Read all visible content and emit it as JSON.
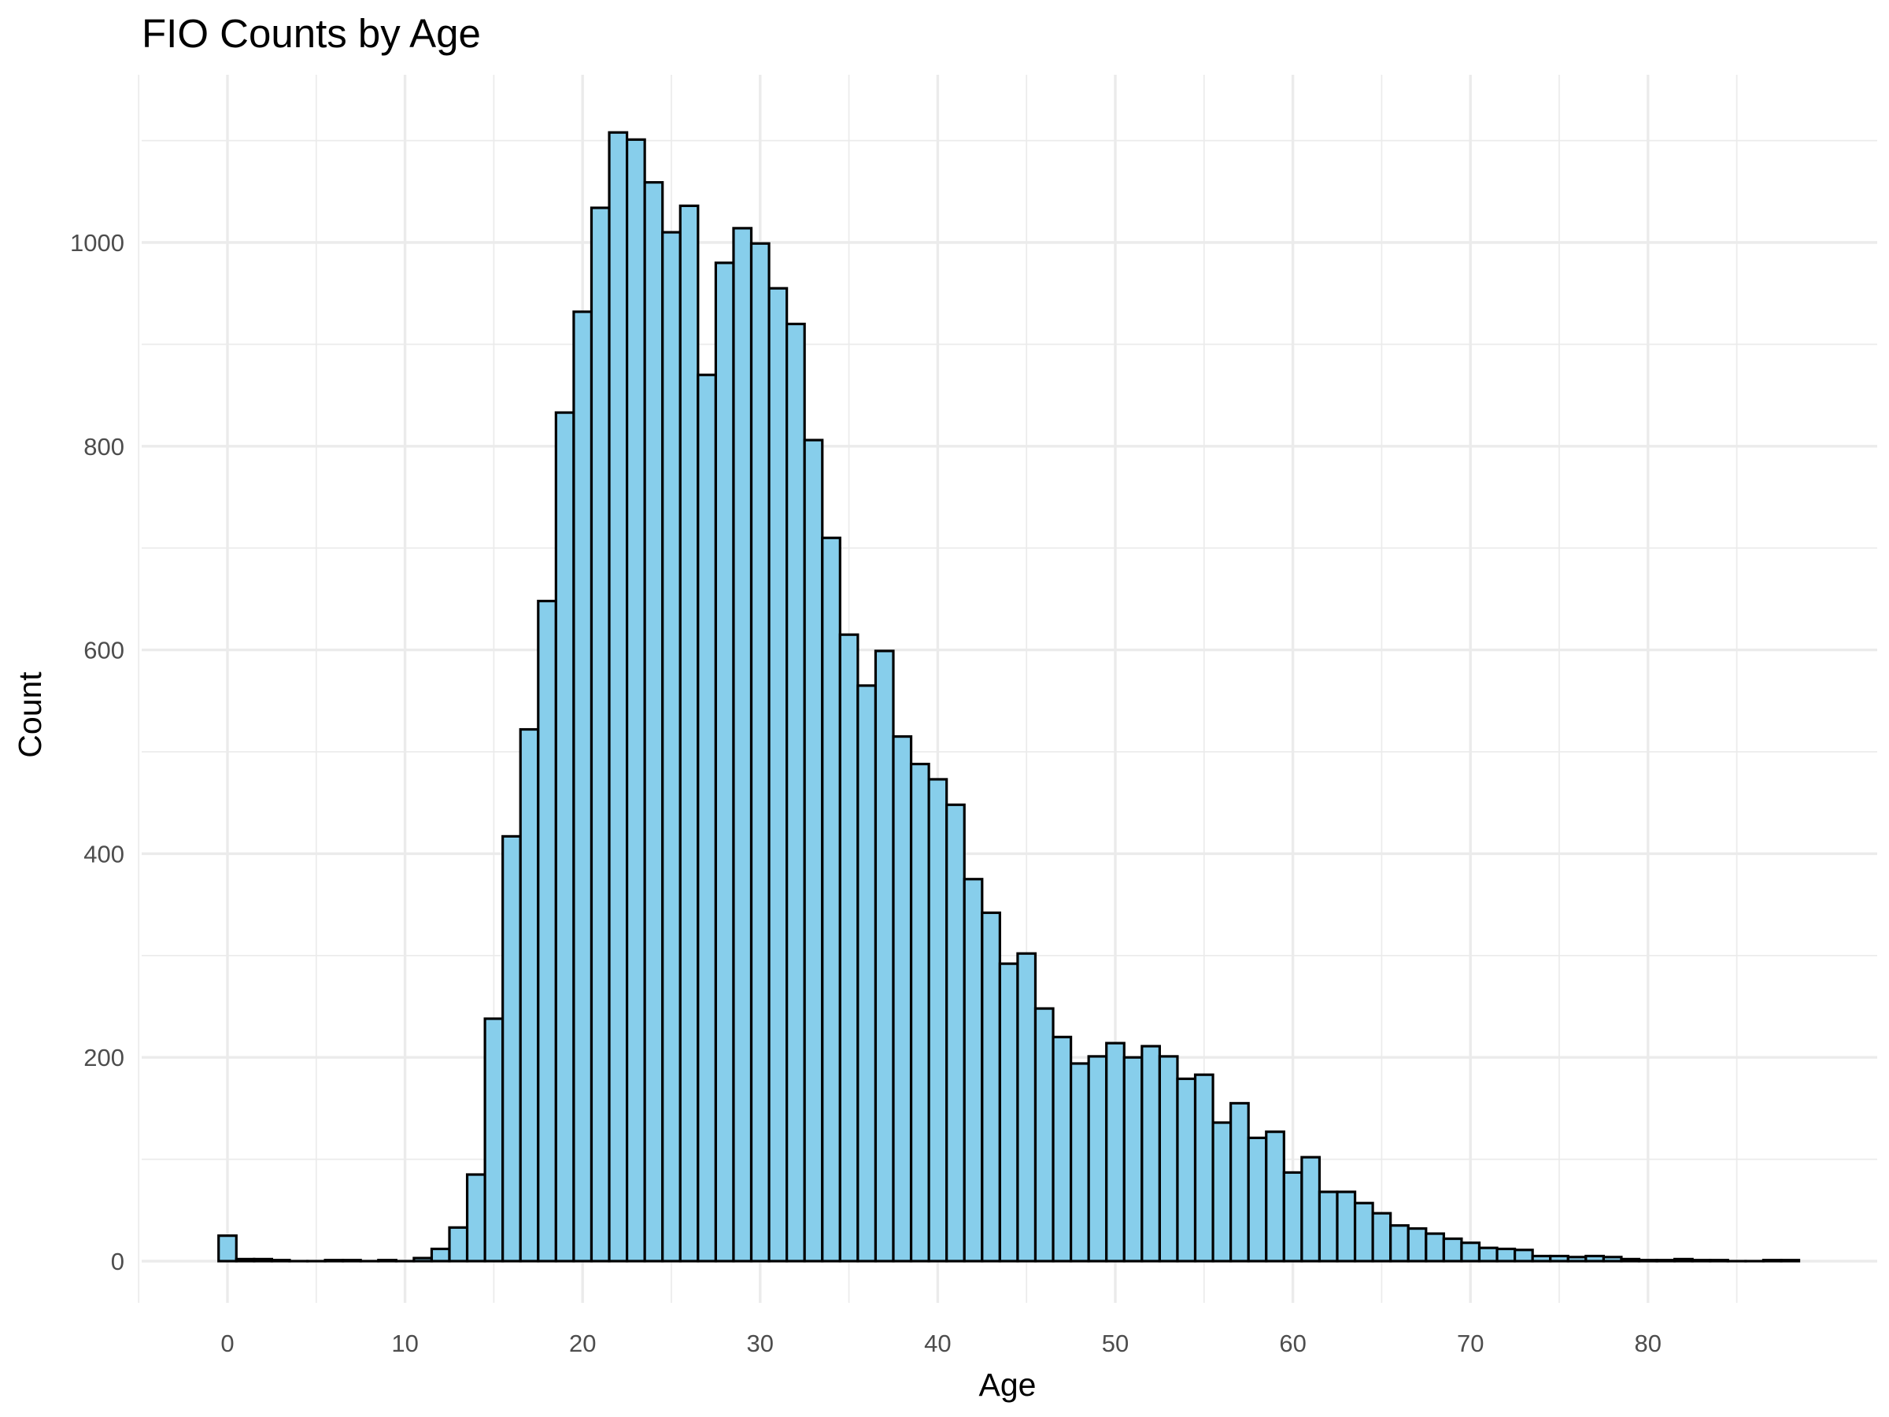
{
  "chart_data": {
    "type": "bar",
    "title": "FIO Counts by Age",
    "xlabel": "Age",
    "ylabel": "Count",
    "x_ticks": [
      "0",
      "10",
      "20",
      "30",
      "40",
      "50",
      "60",
      "70",
      "80"
    ],
    "y_ticks": [
      "0",
      "200",
      "400",
      "600",
      "800",
      "1000"
    ],
    "xlim": [
      -5,
      90
    ],
    "ylim": [
      -65,
      1145
    ],
    "grid": true,
    "bar_fill": "#87ceeb",
    "bar_outline": "#000000",
    "x": [
      0,
      1,
      2,
      3,
      4,
      5,
      6,
      7,
      8,
      9,
      10,
      11,
      12,
      13,
      14,
      15,
      16,
      17,
      18,
      19,
      20,
      21,
      22,
      23,
      24,
      25,
      26,
      27,
      28,
      29,
      30,
      31,
      32,
      33,
      34,
      35,
      36,
      37,
      38,
      39,
      40,
      41,
      42,
      43,
      44,
      45,
      46,
      47,
      48,
      49,
      50,
      51,
      52,
      53,
      54,
      55,
      56,
      57,
      58,
      59,
      60,
      61,
      62,
      63,
      64,
      65,
      66,
      67,
      68,
      69,
      70,
      71,
      72,
      73,
      74,
      75,
      76,
      77,
      78,
      79,
      80,
      81,
      82,
      83,
      84,
      85,
      86,
      87,
      88
    ],
    "values": [
      25,
      2,
      2,
      1,
      0,
      0,
      1,
      1,
      0,
      1,
      0,
      3,
      12,
      33,
      85,
      238,
      417,
      522,
      648,
      833,
      932,
      1034,
      1108,
      1101,
      1059,
      1010,
      1036,
      870,
      980,
      1014,
      999,
      955,
      920,
      806,
      710,
      615,
      565,
      599,
      515,
      488,
      473,
      448,
      375,
      342,
      292,
      302,
      248,
      220,
      194,
      201,
      214,
      200,
      211,
      201,
      179,
      183,
      136,
      155,
      121,
      127,
      87,
      102,
      68,
      68,
      57,
      47,
      35,
      32,
      27,
      22,
      18,
      13,
      12,
      11,
      5,
      5,
      4,
      5,
      4,
      2,
      1,
      1,
      2,
      1,
      1,
      0,
      0,
      1,
      1
    ]
  }
}
